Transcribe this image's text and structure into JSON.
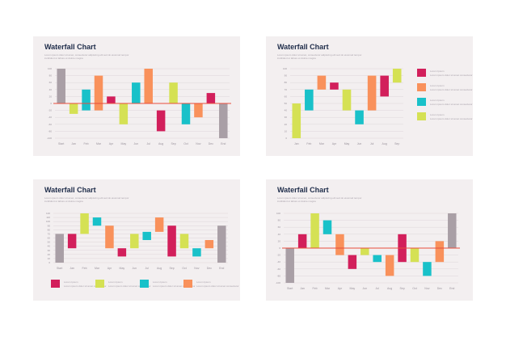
{
  "colors": {
    "gray": "#a99fa6",
    "yellow": "#d5e154",
    "teal": "#19c1c9",
    "orange": "#f9915b",
    "magenta": "#d21f5b",
    "redline": "#e84c3d",
    "grid": "#ddd6da",
    "axis": "#9a939c"
  },
  "cards": [
    {
      "title": "Waterfall Chart",
      "subtitle": "Lorem ipsum dolor sit amet, consectetur adipiscing elit sed do eiusmod tempor incididunt ut labore et dolore magna",
      "chart_data": {
        "type": "bar",
        "style": "waterfall",
        "title": "Waterfall Chart",
        "yticks": [
          "100",
          "80",
          "60",
          "40",
          "20",
          "0",
          "-20",
          "-40",
          "-60",
          "-80",
          "-100"
        ],
        "ylim": [
          -100,
          100
        ],
        "zero_line": 0,
        "categories": [
          "Start",
          "Jan",
          "Feb",
          "Mar",
          "Apr",
          "May",
          "Jun",
          "Jul",
          "Aug",
          "Sep",
          "Oct",
          "Nov",
          "Dec",
          "End"
        ],
        "bars": [
          {
            "low": 0,
            "high": 100,
            "color": "gray"
          },
          {
            "low": -30,
            "high": 0,
            "color": "yellow"
          },
          {
            "low": -20,
            "high": 40,
            "color": "teal"
          },
          {
            "low": -20,
            "high": 80,
            "color": "orange"
          },
          {
            "low": 0,
            "high": 20,
            "color": "magenta"
          },
          {
            "low": -60,
            "high": 0,
            "color": "yellow"
          },
          {
            "low": 0,
            "high": 60,
            "color": "teal"
          },
          {
            "low": 0,
            "high": 100,
            "color": "orange"
          },
          {
            "low": -80,
            "high": -20,
            "color": "magenta"
          },
          {
            "low": 0,
            "high": 60,
            "color": "yellow"
          },
          {
            "low": -60,
            "high": 0,
            "color": "teal"
          },
          {
            "low": -40,
            "high": 0,
            "color": "orange"
          },
          {
            "low": 0,
            "high": 30,
            "color": "magenta"
          },
          {
            "low": -100,
            "high": 0,
            "color": "gray"
          }
        ]
      }
    },
    {
      "title": "Waterfall Chart",
      "subtitle": "Lorem ipsum dolor sit amet, consectetur adipiscing elit sed do eiusmod tempor incididunt ut labore et dolore magna",
      "legend": [
        {
          "color": "magenta",
          "title": "Lorem Ipsum",
          "text": "Lorem ipsum dolor sit amet consectetur"
        },
        {
          "color": "orange",
          "title": "Lorem Ipsum",
          "text": "Lorem ipsum dolor sit amet consectetur"
        },
        {
          "color": "teal",
          "title": "Lorem Ipsum",
          "text": "Lorem ipsum dolor sit amet consectetur"
        },
        {
          "color": "yellow",
          "title": "Lorem Ipsum",
          "text": "Lorem ipsum dolor sit amet consectetur"
        }
      ],
      "chart_data": {
        "type": "bar",
        "style": "waterfall",
        "title": "Waterfall Chart",
        "yticks": [
          "100",
          "90",
          "80",
          "70",
          "60",
          "50",
          "40",
          "30",
          "20",
          "10",
          "0"
        ],
        "ylim": [
          0,
          100
        ],
        "categories": [
          "Jan",
          "Feb",
          "Mar",
          "Apr",
          "May",
          "Jun",
          "Jul",
          "Aug",
          "Sep"
        ],
        "bars": [
          {
            "low": 0,
            "high": 50,
            "color": "yellow"
          },
          {
            "low": 40,
            "high": 70,
            "color": "teal"
          },
          {
            "low": 70,
            "high": 90,
            "color": "orange"
          },
          {
            "low": 70,
            "high": 80,
            "color": "magenta"
          },
          {
            "low": 40,
            "high": 70,
            "color": "yellow"
          },
          {
            "low": 20,
            "high": 40,
            "color": "teal"
          },
          {
            "low": 40,
            "high": 90,
            "color": "orange"
          },
          {
            "low": 60,
            "high": 90,
            "color": "magenta"
          },
          {
            "low": 80,
            "high": 100,
            "color": "yellow"
          }
        ]
      }
    },
    {
      "title": "Waterfall Chart",
      "subtitle": "Lorem ipsum dolor sit amet, consectetur adipiscing elit sed do eiusmod tempor incididunt ut labore et dolore magna",
      "legend": [
        {
          "color": "magenta",
          "title": "Lorem Ipsum",
          "text": "Lorem ipsum dolor sit amet consectetur"
        },
        {
          "color": "yellow",
          "title": "Lorem Ipsum",
          "text": "Lorem ipsum dolor sit amet consectetur"
        },
        {
          "color": "teal",
          "title": "Lorem Ipsum",
          "text": "Lorem ipsum dolor sit amet consectetur"
        },
        {
          "color": "orange",
          "title": "Lorem Ipsum",
          "text": "Lorem ipsum dolor sit amet consectetur"
        }
      ],
      "chart_data": {
        "type": "bar",
        "style": "waterfall",
        "title": "Waterfall Chart",
        "yticks": [
          "120",
          "110",
          "100",
          "90",
          "80",
          "70",
          "60",
          "50",
          "40",
          "30",
          "20",
          "10",
          "0"
        ],
        "ylim": [
          0,
          120
        ],
        "categories": [
          "Start",
          "Jan",
          "Feb",
          "Mar",
          "Apr",
          "May",
          "Jun",
          "Jul",
          "Aug",
          "Sep",
          "Oct",
          "Nov",
          "Dec",
          "End"
        ],
        "bars": [
          {
            "low": 0,
            "high": 70,
            "color": "gray"
          },
          {
            "low": 35,
            "high": 70,
            "color": "magenta"
          },
          {
            "low": 70,
            "high": 125,
            "color": "yellow"
          },
          {
            "low": 90,
            "high": 110,
            "color": "teal"
          },
          {
            "low": 35,
            "high": 90,
            "color": "orange"
          },
          {
            "low": 15,
            "high": 35,
            "color": "magenta"
          },
          {
            "low": 35,
            "high": 70,
            "color": "yellow"
          },
          {
            "low": 55,
            "high": 75,
            "color": "teal"
          },
          {
            "low": 75,
            "high": 110,
            "color": "orange"
          },
          {
            "low": 15,
            "high": 90,
            "color": "magenta"
          },
          {
            "low": 35,
            "high": 70,
            "color": "yellow"
          },
          {
            "low": 15,
            "high": 35,
            "color": "teal"
          },
          {
            "low": 35,
            "high": 55,
            "color": "orange"
          },
          {
            "low": 0,
            "high": 90,
            "color": "gray"
          }
        ]
      }
    },
    {
      "title": "Waterfall Chart",
      "subtitle": "Lorem ipsum dolor sit amet, consectetur adipiscing elit sed do eiusmod tempor incididunt ut labore et dolore magna",
      "chart_data": {
        "type": "bar",
        "style": "waterfall",
        "title": "Waterfall Chart",
        "yticks": [
          "100",
          "80",
          "60",
          "40",
          "20",
          "0",
          "-20",
          "-40",
          "-60",
          "-80",
          "-100"
        ],
        "ylim": [
          -100,
          100
        ],
        "zero_line": 0,
        "categories": [
          "Start",
          "Jan",
          "Feb",
          "Mar",
          "Apr",
          "May",
          "Jun",
          "Jul",
          "Aug",
          "Sep",
          "Oct",
          "Nov",
          "Dec",
          "End"
        ],
        "bars": [
          {
            "low": -100,
            "high": 0,
            "color": "gray"
          },
          {
            "low": 0,
            "high": 40,
            "color": "magenta"
          },
          {
            "low": 0,
            "high": 100,
            "color": "yellow"
          },
          {
            "low": 40,
            "high": 80,
            "color": "teal"
          },
          {
            "low": -20,
            "high": 40,
            "color": "orange"
          },
          {
            "low": -60,
            "high": -20,
            "color": "magenta"
          },
          {
            "low": -20,
            "high": 0,
            "color": "yellow"
          },
          {
            "low": -40,
            "high": -20,
            "color": "teal"
          },
          {
            "low": -80,
            "high": -20,
            "color": "orange"
          },
          {
            "low": -40,
            "high": 40,
            "color": "magenta"
          },
          {
            "low": -40,
            "high": 0,
            "color": "yellow"
          },
          {
            "low": -80,
            "high": -40,
            "color": "teal"
          },
          {
            "low": -40,
            "high": 20,
            "color": "orange"
          },
          {
            "low": 0,
            "high": 100,
            "color": "gray"
          }
        ]
      }
    }
  ]
}
